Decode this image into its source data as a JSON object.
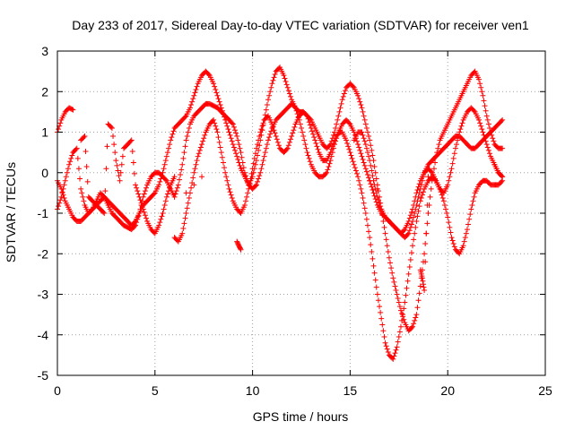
{
  "chart_data": {
    "type": "scatter",
    "title": "Day 233 of 2017, Sidereal Day-to-day VTEC variation (SDTVAR) for receiver ven1",
    "xlabel": "GPS time / hours",
    "ylabel": "SDTVAR / TECUs",
    "xlim": [
      0,
      25
    ],
    "ylim": [
      -5,
      3
    ],
    "xticks": [
      0,
      5,
      10,
      15,
      20,
      25
    ],
    "yticks": [
      -5,
      -4,
      -3,
      -2,
      -1,
      0,
      1,
      2,
      3
    ],
    "grid": true,
    "marker": "plus",
    "color": "#ff0000",
    "series": [
      {
        "x": [
          0.0,
          0.2,
          0.4,
          0.6,
          0.8
        ],
        "y": [
          1.0,
          1.3,
          1.5,
          1.6,
          1.55
        ]
      },
      {
        "x": [
          0.0,
          0.2,
          0.4,
          0.6,
          0.8,
          1.0,
          1.2,
          1.4,
          1.6,
          1.8,
          2.0,
          2.2,
          2.4,
          2.6,
          2.8,
          3.0,
          3.2,
          3.4,
          3.6,
          3.8,
          4.0,
          4.2,
          4.4,
          4.6,
          4.8,
          5.0,
          5.2,
          5.4,
          5.6,
          5.8,
          6.0,
          6.2,
          6.4,
          6.6,
          6.8,
          7.0,
          7.2,
          7.4,
          7.6,
          7.8,
          8.0,
          8.2,
          8.4,
          8.6,
          8.8,
          9.0,
          9.2,
          9.4,
          9.6,
          9.8,
          10.0,
          10.2,
          10.4,
          10.6,
          10.8,
          11.0,
          11.2,
          11.4,
          11.6,
          11.8,
          12.0,
          12.2,
          12.4,
          12.6,
          12.8,
          13.0,
          13.2,
          13.4,
          13.6,
          13.8,
          14.0,
          14.2,
          14.4,
          14.6,
          14.8,
          15.0,
          15.2,
          15.4,
          15.6,
          15.8,
          16.0,
          16.2,
          16.4,
          16.6,
          16.8,
          17.0,
          17.2,
          17.4,
          17.6,
          17.8,
          18.0,
          18.2,
          18.4,
          18.6,
          18.8,
          19.0,
          19.2,
          19.4,
          19.6,
          19.8,
          20.0,
          20.2,
          20.4,
          20.6,
          20.8,
          21.0,
          21.2,
          21.4,
          21.6,
          21.8,
          22.0,
          22.2,
          22.4,
          22.6,
          22.8
        ],
        "y": [
          -0.9,
          -0.6,
          -0.2,
          0.2,
          0.5,
          0.6,
          -0.4,
          -0.8,
          -1.0,
          -0.9,
          -0.7,
          -0.5,
          -0.6,
          -0.8,
          -1.0,
          -1.1,
          -1.2,
          -1.3,
          -1.35,
          -1.4,
          -1.3,
          -1.0,
          -0.6,
          -0.3,
          -0.1,
          0.0,
          0.0,
          -0.1,
          -0.2,
          -0.4,
          -0.6,
          -0.3,
          0.2,
          0.8,
          1.2,
          1.4,
          1.5,
          1.6,
          1.7,
          1.7,
          1.65,
          1.6,
          1.5,
          1.4,
          1.3,
          1.2,
          0.9,
          0.5,
          0.0,
          -0.3,
          -0.4,
          -0.3,
          0.0,
          0.4,
          0.8,
          1.1,
          1.3,
          1.4,
          1.5,
          1.6,
          1.7,
          1.6,
          1.3,
          0.9,
          0.5,
          0.2,
          0.0,
          -0.1,
          -0.1,
          0.0,
          0.3,
          0.7,
          1.0,
          1.2,
          1.3,
          1.2,
          1.0,
          0.7,
          0.4,
          0.1,
          -0.2,
          -0.5,
          -0.8,
          -1.0,
          -1.1,
          -1.2,
          -1.3,
          -1.4,
          -1.5,
          -1.4,
          -1.2,
          -0.9,
          -0.5,
          -0.2,
          0.0,
          0.1,
          0.0,
          -0.2,
          -0.4,
          -0.5,
          -0.3,
          0.1,
          0.6,
          1.0,
          1.3,
          1.5,
          1.6,
          1.5,
          1.3,
          1.0,
          0.7,
          0.4,
          0.2,
          0.0,
          -0.1
        ]
      },
      {
        "x": [
          0.0,
          0.2,
          0.4,
          0.6,
          0.8,
          1.0,
          1.2,
          1.4,
          1.6,
          1.8,
          2.0,
          2.2,
          2.4,
          2.6,
          2.8,
          3.0,
          3.2,
          3.4,
          3.6,
          3.8,
          4.0,
          4.2,
          4.4,
          4.6,
          4.8,
          5.0,
          5.2,
          5.4,
          5.6,
          5.8,
          6.0,
          6.2,
          6.4,
          6.6,
          6.8,
          7.0,
          7.2,
          7.4,
          7.6,
          7.8,
          8.0,
          8.2,
          8.4,
          8.6,
          8.8,
          9.0,
          9.2,
          9.4,
          9.6,
          9.8,
          10.0,
          10.2,
          10.4,
          10.6,
          10.8,
          11.0,
          11.2,
          11.4,
          11.6,
          11.8,
          12.0,
          12.2,
          12.4,
          12.6,
          12.8,
          13.0,
          13.2,
          13.4,
          13.6,
          13.8,
          14.0,
          14.2,
          14.4,
          14.6,
          14.8,
          15.0,
          15.2,
          15.4,
          15.6,
          15.8,
          16.0,
          16.2,
          16.4,
          16.6,
          16.8,
          17.0,
          17.2,
          17.4,
          17.6,
          17.8,
          18.0,
          18.2,
          18.4,
          18.6,
          18.8,
          19.0,
          19.2,
          19.4,
          19.6,
          19.8,
          20.0,
          20.2,
          20.4,
          20.6,
          20.8,
          21.0,
          21.2,
          21.4,
          21.6,
          21.8,
          22.0,
          22.2,
          22.4,
          22.6,
          22.8
        ],
        "y": [
          -0.2,
          -0.4,
          -0.7,
          -0.9,
          -1.1,
          -1.2,
          -1.2,
          -1.1,
          -1.0,
          -0.9,
          -0.8,
          -0.7,
          -0.6,
          -0.7,
          -0.8,
          -0.9,
          -1.0,
          -1.1,
          -1.2,
          -1.3,
          -1.2,
          -1.0,
          -0.8,
          -0.7,
          -0.6,
          -0.5,
          -0.3,
          0.0,
          0.4,
          0.8,
          1.1,
          1.2,
          1.3,
          1.4,
          1.6,
          1.9,
          2.2,
          2.4,
          2.5,
          2.4,
          2.2,
          1.9,
          1.6,
          1.3,
          1.0,
          0.7,
          0.4,
          0.1,
          -0.1,
          -0.3,
          -0.1,
          0.3,
          0.8,
          1.3,
          1.8,
          2.2,
          2.5,
          2.6,
          2.4,
          2.1,
          1.8,
          1.6,
          1.5,
          1.5,
          1.4,
          1.3,
          1.1,
          0.9,
          0.7,
          0.6,
          0.7,
          1.0,
          1.4,
          1.8,
          2.1,
          2.2,
          2.1,
          1.9,
          1.6,
          1.2,
          0.8,
          0.3,
          -0.3,
          -0.9,
          -1.5,
          -2.1,
          -2.6,
          -3.0,
          -3.4,
          -3.7,
          -3.9,
          -3.8,
          -3.5,
          -2.8,
          -2.0,
          -1.0,
          -0.2,
          0.4,
          0.8,
          1.0,
          1.2,
          1.4,
          1.6,
          1.8,
          2.0,
          2.2,
          2.4,
          2.5,
          2.3,
          1.9,
          1.4,
          1.0,
          0.7,
          0.6,
          0.6
        ]
      },
      {
        "x": [
          6.0,
          6.2,
          6.4,
          6.6,
          6.8,
          7.0,
          7.2,
          7.4,
          7.6,
          7.8,
          8.0,
          8.2,
          8.4,
          8.6,
          8.8,
          9.0,
          9.2,
          9.4,
          9.6,
          9.8,
          10.0,
          10.2,
          10.4,
          10.6,
          10.8,
          11.0,
          11.2,
          11.4,
          11.6,
          11.8,
          12.0,
          12.2,
          12.4,
          12.6,
          12.8,
          13.0,
          13.2,
          13.4,
          13.6,
          13.8,
          14.0,
          14.2,
          14.4,
          14.6,
          14.8,
          15.0,
          15.2,
          15.4,
          15.6,
          15.8,
          16.0,
          16.2,
          16.4,
          16.6,
          16.8,
          17.0,
          17.2,
          17.4,
          17.6,
          17.8,
          18.0,
          18.2,
          18.4,
          18.6,
          18.8,
          19.0,
          19.2,
          19.4,
          19.6,
          19.8,
          20.0,
          20.2,
          20.4,
          20.6,
          20.8,
          21.0,
          21.2,
          21.4,
          21.6,
          21.8,
          22.0,
          22.2,
          22.4,
          22.6,
          22.8
        ],
        "y": [
          -1.6,
          -1.7,
          -1.5,
          -1.0,
          -0.5,
          0.0,
          0.4,
          0.7,
          1.0,
          1.2,
          1.3,
          1.0,
          0.5,
          0.0,
          -0.4,
          -0.7,
          -0.9,
          -1.0,
          -0.8,
          -0.4,
          0.1,
          0.6,
          1.0,
          1.3,
          1.4,
          1.2,
          0.9,
          0.6,
          0.5,
          0.6,
          0.9,
          1.2,
          1.4,
          1.5,
          1.4,
          1.1,
          0.8,
          0.5,
          0.3,
          0.3,
          0.5,
          0.8,
          1.0,
          1.0,
          0.8,
          0.5,
          0.2,
          -0.1,
          -0.5,
          -1.0,
          -1.6,
          -2.3,
          -3.0,
          -3.6,
          -4.2,
          -4.5,
          -4.6,
          -4.3,
          -3.8,
          -3.2,
          -2.5,
          -1.8,
          -1.2,
          -0.7,
          -0.4,
          -0.2,
          -0.1,
          -0.2,
          -0.4,
          -0.7,
          -1.1,
          -1.6,
          -1.9,
          -2.0,
          -1.8,
          -1.4,
          -0.9,
          -0.5,
          -0.3,
          -0.2,
          -0.2,
          -0.3,
          -0.3,
          -0.3,
          -0.2
        ]
      },
      {
        "x": [
          1.2,
          1.4,
          1.6,
          1.8,
          2.0,
          2.2,
          2.4,
          2.6,
          2.8,
          3.0,
          3.2,
          3.4,
          3.6,
          3.8,
          4.0,
          4.2,
          4.4,
          4.6,
          4.8,
          5.0,
          5.2,
          5.4,
          5.6,
          5.8,
          6.0
        ],
        "y": [
          0.8,
          0.9,
          -0.6,
          -0.7,
          -0.8,
          -0.9,
          -1.0,
          1.2,
          1.1,
          0.3,
          -0.2,
          0.6,
          0.7,
          0.8,
          -0.3,
          -0.6,
          -0.9,
          -1.2,
          -1.4,
          -1.5,
          -1.3,
          -1.0,
          -0.6,
          -0.3,
          -0.1
        ]
      },
      {
        "x": [
          15.2,
          15.4,
          15.6,
          15.8,
          16.0,
          16.2,
          16.4,
          16.6,
          16.8,
          17.0,
          17.2,
          17.4,
          17.6,
          17.8,
          18.0,
          18.2,
          18.4,
          18.6,
          18.8,
          19.0,
          19.2,
          19.4,
          19.6,
          19.8,
          20.0,
          20.2,
          20.4,
          20.6,
          20.8,
          21.0,
          21.2,
          21.4,
          21.6,
          21.8,
          22.0,
          22.2,
          22.4,
          22.6,
          22.8
        ],
        "y": [
          0.8,
          1.0,
          1.0,
          0.7,
          0.3,
          -0.2,
          -0.6,
          -0.9,
          -1.1,
          -1.2,
          -1.3,
          -1.4,
          -1.5,
          -1.6,
          -1.5,
          -1.2,
          -0.8,
          -0.4,
          0.0,
          0.2,
          0.3,
          0.4,
          0.5,
          0.6,
          0.7,
          0.8,
          0.9,
          0.9,
          0.8,
          0.7,
          0.6,
          0.6,
          0.7,
          0.8,
          0.9,
          1.0,
          1.1,
          1.2,
          1.3
        ]
      },
      {
        "x": [
          6.6,
          7.0,
          7.4,
          9.2,
          9.3,
          9.4,
          16.0,
          16.4,
          18.6,
          18.7,
          18.8,
          19.0,
          22.4,
          22.6,
          22.8
        ],
        "y": [
          -0.5,
          -0.3,
          -0.1,
          -1.7,
          -1.8,
          -1.9,
          -0.2,
          -0.4,
          -2.4,
          -2.6,
          -2.9,
          -0.1,
          0.2,
          0.0,
          -0.1
        ]
      }
    ]
  }
}
